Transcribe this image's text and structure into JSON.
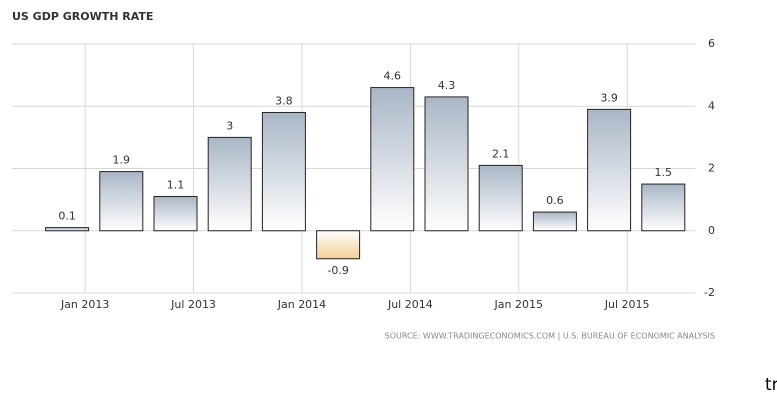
{
  "chart_data": {
    "type": "bar",
    "title": "US GDP GROWTH RATE",
    "categories": [
      "Jan 2013",
      null,
      "Jul 2013",
      null,
      "Jan 2014",
      null,
      "Jul 2014",
      null,
      "Jan 2015",
      null,
      "Jul 2015",
      null
    ],
    "values": [
      0.1,
      1.9,
      1.1,
      3,
      3.8,
      -0.9,
      4.6,
      4.3,
      2.1,
      0.6,
      3.9,
      1.5
    ],
    "color": "#aab6c6",
    "negative_color": "#f2cf94",
    "ylim": [
      -2,
      6
    ],
    "yticks": [
      -2,
      0,
      2,
      4,
      6
    ],
    "grid": true,
    "source": "SOURCE: WWW.TRADINGECONOMICS.COM  |  U.S. BUREAU OF ECONOMIC ANALYSIS",
    "caption": "מקור: tradingeconomics.com"
  }
}
